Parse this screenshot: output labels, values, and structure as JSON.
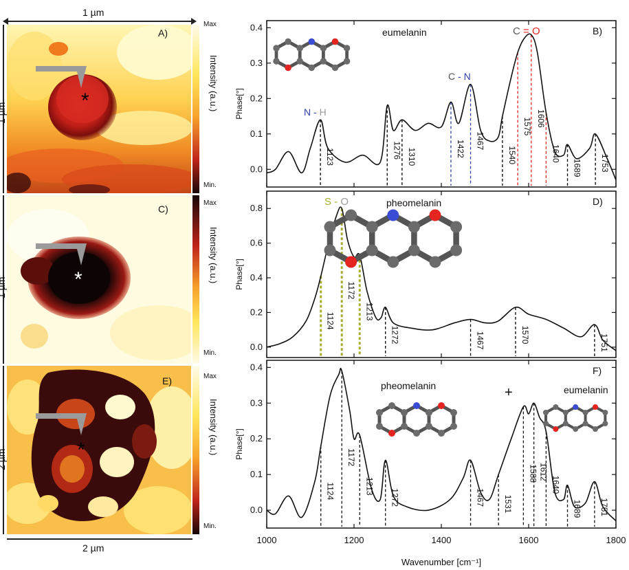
{
  "maps": {
    "top_scale": "1 µm",
    "bottom_scale": "2 µm",
    "panels": [
      {
        "letter": "A)",
        "scale": "1 µm",
        "cb_max": "Max",
        "cb_min": "Min.",
        "cb_label": "Intensity (a.u.)",
        "marker": "*"
      },
      {
        "letter": "C)",
        "scale": "1 µm",
        "cb_max": "Max",
        "cb_min": "Min.",
        "cb_label": "Intensity (a.u.)",
        "marker": "*"
      },
      {
        "letter": "E)",
        "scale": "2 µm",
        "cb_max": "Max",
        "cb_min": "Min.",
        "cb_label": "Intensity (a.u.)",
        "marker": "*"
      }
    ]
  },
  "chart_data": [
    {
      "type": "line",
      "panel": "B)",
      "title": "eumelanin",
      "ylabel": "Phase[°]",
      "xlim": [
        1000,
        1800
      ],
      "ylim": [
        -0.05,
        0.42
      ],
      "yticks": [
        "0.0",
        "0.1",
        "0.2",
        "0.3",
        "0.4"
      ],
      "x": [
        1000,
        1020,
        1050,
        1080,
        1100,
        1123,
        1140,
        1180,
        1220,
        1260,
        1276,
        1290,
        1310,
        1340,
        1370,
        1400,
        1422,
        1440,
        1467,
        1490,
        1510,
        1530,
        1540,
        1560,
        1575,
        1590,
        1606,
        1620,
        1640,
        1660,
        1680,
        1689,
        1710,
        1740,
        1753,
        1780,
        1800
      ],
      "y": [
        -0.01,
        0.0,
        0.05,
        -0.01,
        0.06,
        0.14,
        0.06,
        0.02,
        0.04,
        0.02,
        0.18,
        0.11,
        0.14,
        0.11,
        0.13,
        0.12,
        0.19,
        0.13,
        0.24,
        0.11,
        0.08,
        0.09,
        0.15,
        0.26,
        0.33,
        0.37,
        0.38,
        0.33,
        0.16,
        0.05,
        0.04,
        0.07,
        0.03,
        0.06,
        0.1,
        0.03,
        -0.03
      ],
      "annotations": [
        {
          "x": 1123,
          "label": "1123",
          "color": "#000000"
        },
        {
          "x": 1276,
          "label": "1276",
          "color": "#000000"
        },
        {
          "x": 1310,
          "label": "1310",
          "color": "#000000"
        },
        {
          "x": 1422,
          "label": "1422",
          "color": "#2f3fae"
        },
        {
          "x": 1467,
          "label": "1467",
          "color": "#2f3fae"
        },
        {
          "x": 1540,
          "label": "1540",
          "color": "#000000"
        },
        {
          "x": 1575,
          "label": "1575",
          "color": "#e5231f"
        },
        {
          "x": 1606,
          "label": "1606",
          "color": "#e5231f"
        },
        {
          "x": 1640,
          "label": "1640",
          "color": "#e5231f"
        },
        {
          "x": 1689,
          "label": "1689",
          "color": "#000000"
        },
        {
          "x": 1753,
          "label": "1753",
          "color": "#000000"
        }
      ],
      "bond_labels": [
        {
          "a": "N",
          "sep": " - ",
          "b": "H"
        },
        {
          "a": "C",
          "sep": " - ",
          "b": "N"
        },
        {
          "a": "C",
          "sep": " = ",
          "b": "O"
        }
      ]
    },
    {
      "type": "line",
      "panel": "D)",
      "title": "pheomelanin",
      "ylabel": "Phase[°]",
      "xlim": [
        1000,
        1800
      ],
      "ylim": [
        -0.06,
        0.9
      ],
      "yticks": [
        "0.0",
        "0.2",
        "0.4",
        "0.6",
        "0.8"
      ],
      "x": [
        1000,
        1030,
        1060,
        1090,
        1110,
        1124,
        1140,
        1160,
        1172,
        1185,
        1200,
        1213,
        1230,
        1250,
        1262,
        1272,
        1290,
        1330,
        1380,
        1430,
        1467,
        1500,
        1530,
        1570,
        1600,
        1640,
        1680,
        1720,
        1751,
        1770,
        1800
      ],
      "y": [
        0.0,
        0.02,
        0.06,
        0.15,
        0.28,
        0.41,
        0.58,
        0.76,
        0.8,
        0.62,
        0.52,
        0.53,
        0.32,
        0.17,
        0.17,
        0.23,
        0.14,
        0.11,
        0.1,
        0.14,
        0.16,
        0.14,
        0.15,
        0.23,
        0.19,
        0.16,
        0.11,
        0.06,
        0.13,
        0.04,
        -0.02
      ],
      "annotations": [
        {
          "x": 1124,
          "label": "1124",
          "color": "#a7ad2e"
        },
        {
          "x": 1172,
          "label": "1172",
          "color": "#a7ad2e"
        },
        {
          "x": 1213,
          "label": "1213",
          "color": "#a7ad2e"
        },
        {
          "x": 1272,
          "label": "1272",
          "color": "#000000"
        },
        {
          "x": 1467,
          "label": "1467",
          "color": "#000000"
        },
        {
          "x": 1570,
          "label": "1570",
          "color": "#000000"
        },
        {
          "x": 1751,
          "label": "1751",
          "color": "#000000"
        }
      ],
      "bond_labels": [
        {
          "a": "S",
          "sep": " - ",
          "b": "O"
        }
      ]
    },
    {
      "type": "line",
      "panel": "F)",
      "title": "pheomelanin",
      "title2": "eumelanin",
      "plus": "+",
      "ylabel": "Phase[°]",
      "xlabel": "Wavenumber [cm⁻¹]",
      "xlim": [
        1000,
        1800
      ],
      "ylim": [
        -0.05,
        0.42
      ],
      "yticks": [
        "0.0",
        "0.1",
        "0.2",
        "0.3",
        "0.4"
      ],
      "xticks": [
        "1000",
        "1200",
        "1400",
        "1600",
        "1800"
      ],
      "x": [
        1000,
        1020,
        1050,
        1080,
        1110,
        1124,
        1145,
        1165,
        1172,
        1190,
        1200,
        1213,
        1240,
        1260,
        1272,
        1290,
        1320,
        1370,
        1420,
        1450,
        1467,
        1490,
        1510,
        1531,
        1560,
        1588,
        1600,
        1612,
        1625,
        1640,
        1660,
        1680,
        1689,
        1705,
        1730,
        1751,
        1770,
        1800
      ],
      "y": [
        0.0,
        -0.01,
        0.04,
        -0.02,
        0.08,
        0.18,
        0.32,
        0.38,
        0.39,
        0.28,
        0.2,
        0.21,
        0.06,
        0.03,
        0.14,
        0.04,
        0.01,
        0.0,
        0.03,
        0.09,
        0.14,
        0.05,
        0.03,
        0.1,
        0.2,
        0.29,
        0.27,
        0.3,
        0.26,
        0.22,
        0.05,
        0.03,
        0.07,
        0.01,
        0.02,
        0.08,
        0.01,
        -0.03
      ],
      "annotations": [
        {
          "x": 1124,
          "label": "1124"
        },
        {
          "x": 1172,
          "label": "1172"
        },
        {
          "x": 1213,
          "label": "1213"
        },
        {
          "x": 1272,
          "label": "1272"
        },
        {
          "x": 1467,
          "label": "1467"
        },
        {
          "x": 1531,
          "label": "1531"
        },
        {
          "x": 1588,
          "label": "1588"
        },
        {
          "x": 1612,
          "label": "1612"
        },
        {
          "x": 1640,
          "label": "1640"
        },
        {
          "x": 1689,
          "label": "1689"
        },
        {
          "x": 1751,
          "label": "1751"
        }
      ]
    }
  ]
}
